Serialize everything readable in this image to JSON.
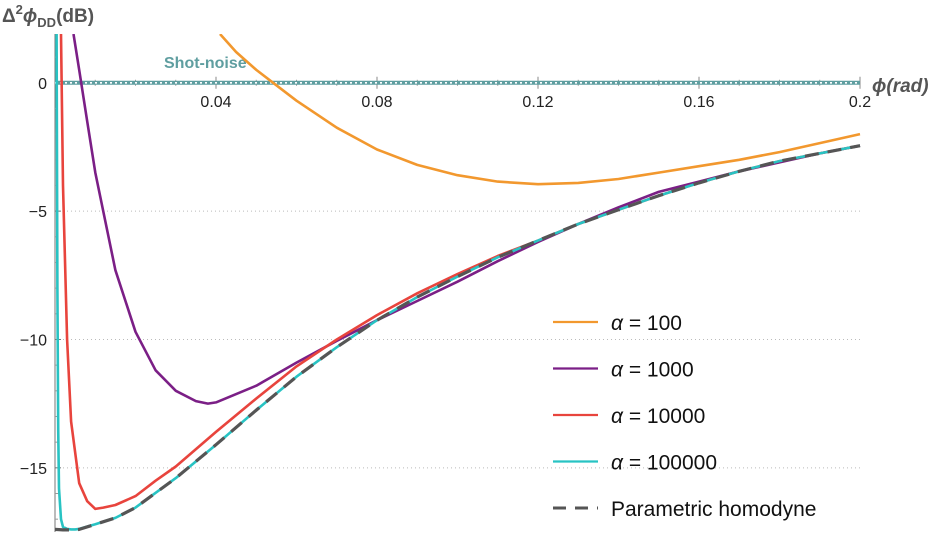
{
  "chart_data": {
    "type": "line",
    "ylabel": "Δ²φ_DD(dB)",
    "ylabel_parts": {
      "delta": "Δ",
      "sup": "2",
      "phi": "ϕ",
      "sub": "DD",
      "unit": "(dB)"
    },
    "xlabel": "ϕ(rad)",
    "xlim": [
      0,
      0.2
    ],
    "ylim": [
      -17.5,
      1.9
    ],
    "x_ticks": [
      0.04,
      0.08,
      0.12,
      0.16,
      0.2
    ],
    "x_tick_labels": [
      "0.04",
      "0.08",
      "0.12",
      "0.16",
      "0.2"
    ],
    "y_ticks": [
      0,
      -5,
      -10,
      -15
    ],
    "y_tick_labels": [
      "0",
      "−5",
      "−10",
      "−15"
    ],
    "grid": "horizontal dotted at y ticks",
    "reference_line": {
      "label": "Shot-noise",
      "y": 0,
      "color": "#5f9ea0"
    },
    "legend_position": "bottom-right",
    "series": [
      {
        "name": "α = 100",
        "legend_greek": "α",
        "legend_rest": " = 100",
        "color": "#f2982e",
        "style": "solid",
        "x": [
          0.041,
          0.045,
          0.05,
          0.055,
          0.06,
          0.07,
          0.08,
          0.09,
          0.1,
          0.11,
          0.12,
          0.13,
          0.14,
          0.15,
          0.16,
          0.17,
          0.18,
          0.19,
          0.2
        ],
        "values": [
          1.9,
          1.2,
          0.5,
          -0.1,
          -0.7,
          -1.75,
          -2.6,
          -3.2,
          -3.6,
          -3.85,
          -3.95,
          -3.9,
          -3.75,
          -3.5,
          -3.25,
          -3.0,
          -2.7,
          -2.35,
          -2.0
        ]
      },
      {
        "name": "α = 1000",
        "legend_greek": "α",
        "legend_rest": " = 1000",
        "color": "#7b1f86",
        "style": "solid",
        "x": [
          0.0046,
          0.006,
          0.008,
          0.01,
          0.015,
          0.02,
          0.025,
          0.03,
          0.035,
          0.038,
          0.04,
          0.05,
          0.06,
          0.07,
          0.08,
          0.09,
          0.1,
          0.11,
          0.12,
          0.13,
          0.14,
          0.15,
          0.16,
          0.17,
          0.18,
          0.19,
          0.2
        ],
        "values": [
          1.9,
          0.5,
          -1.5,
          -3.5,
          -7.3,
          -9.7,
          -11.2,
          -12.0,
          -12.4,
          -12.5,
          -12.45,
          -11.8,
          -10.9,
          -10.05,
          -9.25,
          -8.5,
          -7.75,
          -6.95,
          -6.2,
          -5.5,
          -4.85,
          -4.25,
          -3.85,
          -3.45,
          -3.1,
          -2.75,
          -2.45
        ]
      },
      {
        "name": "α = 10000",
        "legend_greek": "α",
        "legend_rest": " = 10000",
        "color": "#e8443d",
        "style": "solid",
        "x": [
          0.0015,
          0.002,
          0.003,
          0.004,
          0.006,
          0.008,
          0.01,
          0.012,
          0.015,
          0.02,
          0.025,
          0.03,
          0.04,
          0.05,
          0.06,
          0.07,
          0.08,
          0.09,
          0.1,
          0.11,
          0.12,
          0.13,
          0.14,
          0.15,
          0.16,
          0.17,
          0.18,
          0.19,
          0.2
        ],
        "values": [
          1.9,
          -4.0,
          -10.0,
          -13.2,
          -15.6,
          -16.3,
          -16.6,
          -16.55,
          -16.45,
          -16.1,
          -15.5,
          -14.95,
          -13.6,
          -12.3,
          -11.05,
          -10.0,
          -9.05,
          -8.2,
          -7.45,
          -6.75,
          -6.15,
          -5.5,
          -4.95,
          -4.4,
          -3.9,
          -3.45,
          -3.05,
          -2.75,
          -2.45
        ]
      },
      {
        "name": "α = 100000",
        "legend_greek": "α",
        "legend_rest": " = 100000",
        "color": "#28c3c3",
        "style": "solid",
        "x": [
          0.0004,
          0.0006,
          0.0008,
          0.001,
          0.0015,
          0.002,
          0.003,
          0.004,
          0.005,
          0.006,
          0.01,
          0.015,
          0.02,
          0.03,
          0.04,
          0.05,
          0.06,
          0.07,
          0.08,
          0.09,
          0.1,
          0.11,
          0.12,
          0.13,
          0.14,
          0.15,
          0.16,
          0.17,
          0.18,
          0.19,
          0.2
        ],
        "values": [
          1.9,
          -8.0,
          -13.5,
          -15.8,
          -17.0,
          -17.3,
          -17.38,
          -17.4,
          -17.4,
          -17.38,
          -17.2,
          -16.95,
          -16.55,
          -15.4,
          -14.1,
          -12.75,
          -11.45,
          -10.3,
          -9.25,
          -8.35,
          -7.55,
          -6.8,
          -6.15,
          -5.5,
          -4.95,
          -4.4,
          -3.9,
          -3.45,
          -3.05,
          -2.75,
          -2.45
        ]
      },
      {
        "name": "Parametric homodyne",
        "color": "#555555",
        "style": "dashed",
        "x": [
          0.0,
          0.002,
          0.004,
          0.006,
          0.01,
          0.015,
          0.02,
          0.03,
          0.04,
          0.05,
          0.06,
          0.07,
          0.08,
          0.09,
          0.1,
          0.11,
          0.12,
          0.13,
          0.14,
          0.15,
          0.16,
          0.17,
          0.18,
          0.19,
          0.2
        ],
        "values": [
          -17.4,
          -17.42,
          -17.42,
          -17.4,
          -17.2,
          -16.95,
          -16.55,
          -15.4,
          -14.1,
          -12.75,
          -11.45,
          -10.3,
          -9.25,
          -8.35,
          -7.55,
          -6.8,
          -6.15,
          -5.5,
          -4.95,
          -4.4,
          -3.9,
          -3.45,
          -3.05,
          -2.75,
          -2.45
        ]
      }
    ]
  }
}
